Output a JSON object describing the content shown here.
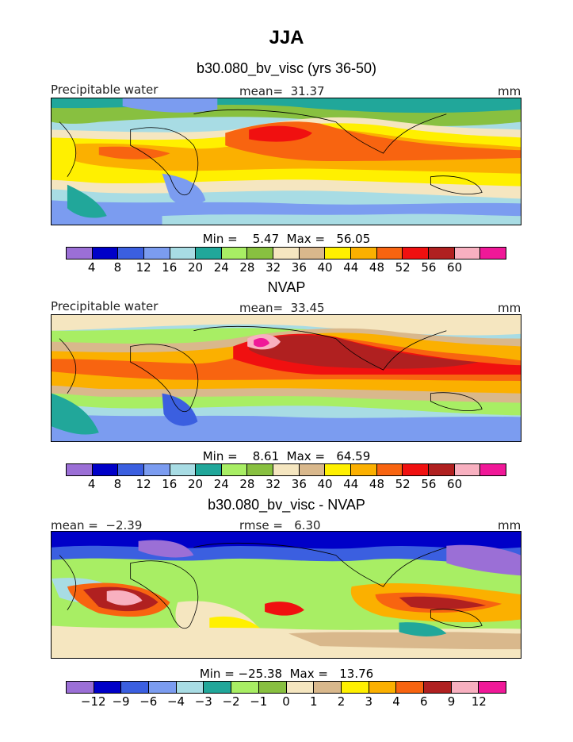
{
  "title": "JJA",
  "palettes": {
    "field": [
      "#9b6fd6",
      "#0000c8",
      "#3b5fe0",
      "#7b9cf0",
      "#a8dce4",
      "#21a79a",
      "#a8ee64",
      "#88c040",
      "#f5e6c0",
      "#d9b88c",
      "#fff000",
      "#fbb000",
      "#f86410",
      "#f01010",
      "#b02020",
      "#f8b0c0",
      "#f01898"
    ],
    "diff": [
      "#9b6fd6",
      "#0000c8",
      "#3b5fe0",
      "#7b9cf0",
      "#a8dce4",
      "#21a79a",
      "#a8ee64",
      "#88c040",
      "#f5e6c0",
      "#d9b88c",
      "#fff000",
      "#fbb000",
      "#f86410",
      "#b02020",
      "#f8b0c0",
      "#f01898"
    ]
  },
  "panels": [
    {
      "title": "b30.080_bv_visc (yrs 36-50)",
      "left_label": "Precipitable water",
      "center_label": "mean=  31.37",
      "units": "mm",
      "minmax": "Min =    5.47  Max =   56.05",
      "palette": "field",
      "ticks": [
        "4",
        "8",
        "12",
        "16",
        "20",
        "24",
        "28",
        "32",
        "36",
        "40",
        "44",
        "48",
        "52",
        "56",
        "60"
      ]
    },
    {
      "title": "NVAP",
      "left_label": "Precipitable water",
      "center_label": "mean=  33.45",
      "units": "mm",
      "minmax": "Min =    8.61  Max =   64.59",
      "palette": "field",
      "ticks": [
        "4",
        "8",
        "12",
        "16",
        "20",
        "24",
        "28",
        "32",
        "36",
        "40",
        "44",
        "48",
        "52",
        "56",
        "60"
      ]
    },
    {
      "title": "b30.080_bv_visc - NVAP",
      "left_label": "mean =  −2.39",
      "center_label": "rmse =   6.30",
      "units": "mm",
      "minmax": "Min = −25.38  Max =   13.76",
      "palette": "diff",
      "ticks": [
        "−12",
        "−9",
        "−6",
        "−4",
        "−3",
        "−2",
        "−1",
        "0",
        "1",
        "2",
        "3",
        "4",
        "6",
        "9",
        "12"
      ]
    }
  ]
}
